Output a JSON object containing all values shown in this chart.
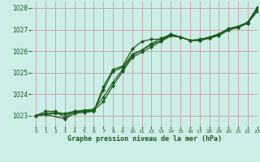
{
  "title": "Graphe pression niveau de la mer (hPa)",
  "background_color": "#cceee8",
  "grid_color": "#c8a8a8",
  "line_color": "#1a5c1a",
  "xlim": [
    -0.5,
    23
  ],
  "ylim": [
    1022.5,
    1028.3
  ],
  "yticks": [
    1023,
    1024,
    1025,
    1026,
    1027,
    1028
  ],
  "xticks": [
    0,
    1,
    2,
    3,
    4,
    5,
    6,
    7,
    8,
    9,
    10,
    11,
    12,
    13,
    14,
    15,
    16,
    17,
    18,
    19,
    20,
    21,
    22,
    23
  ],
  "line1_x": [
    0,
    1,
    2,
    3,
    4,
    5,
    6,
    7,
    8,
    9,
    10,
    11,
    12,
    13,
    14,
    15,
    16,
    17,
    18,
    19,
    20,
    21,
    22,
    23
  ],
  "line1_y": [
    1023.0,
    1023.2,
    1023.2,
    1022.9,
    1023.2,
    1023.2,
    1023.2,
    1024.2,
    1025.05,
    1025.25,
    1025.85,
    1026.05,
    1026.35,
    1026.6,
    1026.75,
    1026.65,
    1026.5,
    1026.55,
    1026.65,
    1026.8,
    1027.05,
    1027.15,
    1027.35,
    1028.05
  ],
  "line2_x": [
    0,
    1,
    2,
    3,
    4,
    5,
    6,
    7,
    8,
    9,
    10,
    11,
    12,
    13,
    14,
    15,
    16,
    17,
    18,
    19,
    20,
    21,
    22,
    23
  ],
  "line2_y": [
    1023.0,
    1023.05,
    1023.1,
    1023.05,
    1023.15,
    1023.2,
    1023.25,
    1023.65,
    1024.4,
    1025.05,
    1025.7,
    1025.95,
    1026.2,
    1026.45,
    1026.7,
    1026.65,
    1026.5,
    1026.5,
    1026.6,
    1026.75,
    1027.0,
    1027.1,
    1027.3,
    1027.85
  ],
  "line3_x": [
    0,
    1,
    2,
    3,
    4,
    5,
    6,
    7,
    8,
    9,
    10,
    11,
    12,
    13,
    14,
    15,
    16,
    17,
    18,
    19,
    20,
    21,
    22,
    23
  ],
  "line3_y": [
    1023.0,
    1023.1,
    1023.15,
    1023.1,
    1023.2,
    1023.25,
    1023.3,
    1023.85,
    1024.55,
    1025.15,
    1025.8,
    1026.05,
    1026.3,
    1026.5,
    1026.75,
    1026.65,
    1026.5,
    1026.5,
    1026.62,
    1026.78,
    1027.02,
    1027.15,
    1027.32,
    1027.95
  ],
  "line4_x": [
    0,
    1,
    3,
    4,
    5,
    6,
    7,
    8,
    9,
    10,
    11,
    12,
    13,
    14,
    15,
    16,
    17,
    18,
    19,
    20,
    21,
    22,
    23
  ],
  "line4_y": [
    1023.0,
    1023.05,
    1022.85,
    1023.1,
    1023.15,
    1023.2,
    1024.35,
    1025.15,
    1025.3,
    1026.1,
    1026.45,
    1026.55,
    1026.55,
    1026.8,
    1026.65,
    1026.5,
    1026.5,
    1026.6,
    1026.72,
    1026.98,
    1027.1,
    1027.3,
    1028.0
  ]
}
